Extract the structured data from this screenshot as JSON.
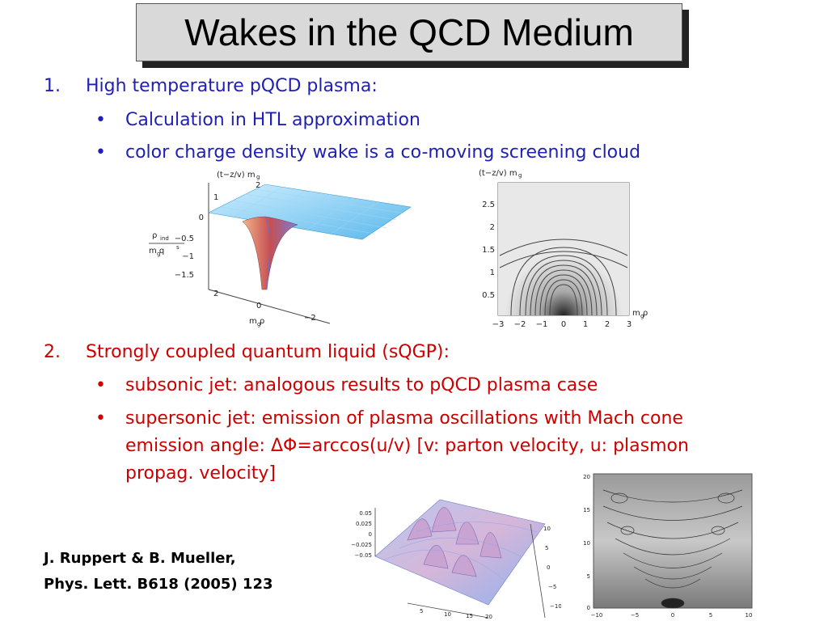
{
  "title": "Wakes in the QCD Medium",
  "section1": {
    "number": "1.",
    "heading": "High temperature pQCD plasma:",
    "bullets": [
      "Calculation in HTL approximation",
      "color charge density wake is a co-moving screening cloud"
    ]
  },
  "section2": {
    "number": "2.",
    "heading": "Strongly coupled quantum liquid (sQGP):",
    "bullets": [
      "subsonic jet: analogous results to pQCD plasma case",
      "supersonic jet: emission of plasma oscillations with Mach cone",
      "emission angle: ΔΦ=arccos(u/v) [v: parton velocity, u: plasmon",
      "propag. velocity]"
    ]
  },
  "bullet_glyph": "•",
  "citation": {
    "line1": "J. Ruppert & B. Mueller,",
    "line2": "Phys. Lett. B618 (2005) 123"
  },
  "figures": {
    "surface1": {
      "zlabel": "(t−z/v)  m",
      "zlabel_sub": "g",
      "ylabel_top": "ρ",
      "ylabel_sub": "ind",
      "ylabel_bottom": "m  q",
      "ylabel_bottom_sub": "g",
      "ylabel_bottom_sup": "s",
      "xlabel": "m  ρ",
      "xlabel_sub": "g",
      "yticks": [
        "0",
        "−0.5",
        "−1",
        "−1.5"
      ],
      "zticks": [
        "2",
        "1"
      ],
      "xticks": [
        "2",
        "0",
        "−2"
      ]
    },
    "contour1": {
      "ylabel": "(t−z/v)  m",
      "ylabel_sub": "g",
      "xlabel": "m  ρ",
      "xlabel_sub": "g",
      "yticks": [
        "2.5",
        "2",
        "1.5",
        "1",
        "0.5"
      ],
      "xticks": [
        "−3",
        "−2",
        "−1",
        "0",
        "1",
        "2",
        "3"
      ]
    },
    "surface2": {
      "zticks": [
        "0.05",
        "0.025",
        "0",
        "−0.025",
        "−0.05"
      ],
      "yticks": [
        "10",
        "5",
        "0",
        "−5",
        "−10"
      ],
      "xticks": [
        "5",
        "10",
        "15",
        "20"
      ]
    },
    "contour2": {
      "yticks": [
        "20",
        "15",
        "10",
        "5",
        "0"
      ],
      "xticks": [
        "−10",
        "−5",
        "0",
        "5",
        "10"
      ]
    }
  },
  "colors": {
    "accent_blue": "#1f1fb4",
    "accent_red": "#cc0000",
    "title_bg": "#d9d9d9"
  }
}
